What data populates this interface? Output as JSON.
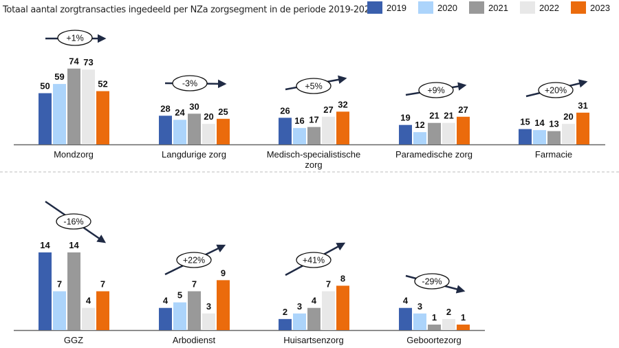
{
  "chart_data": [
    {
      "type": "bar",
      "title": "Totaal aantal zorgtransacties ingedeeld per NZa zorgsegment in de periode 2019-2023",
      "legend_placement": "top-right",
      "categories": [
        "Mondzorg",
        "Langdurige zorg",
        "Medisch-specialistische zorg",
        "Paramedische zorg",
        "Farmacie"
      ],
      "series": [
        {
          "name": "2019",
          "color": "#3a5fad",
          "values": [
            50,
            28,
            26,
            19,
            15
          ]
        },
        {
          "name": "2020",
          "color": "#acd4fb",
          "values": [
            59,
            24,
            16,
            12,
            14
          ]
        },
        {
          "name": "2021",
          "color": "#999999",
          "values": [
            74,
            30,
            17,
            21,
            13
          ]
        },
        {
          "name": "2022",
          "color": "#e8e8e8",
          "values": [
            73,
            20,
            27,
            21,
            20
          ]
        },
        {
          "name": "2023",
          "color": "#eb6b0c",
          "values": [
            52,
            25,
            32,
            27,
            31
          ]
        }
      ],
      "annotations": [
        "+1%",
        "-3%",
        "+5%",
        "+9%",
        "+20%"
      ],
      "grid": false
    },
    {
      "type": "bar",
      "categories": [
        "GGZ",
        "Arbodienst",
        "Huisartsenzorg",
        "Geboortezorg"
      ],
      "series": [
        {
          "name": "2019",
          "color": "#3a5fad",
          "values": [
            14,
            4,
            2,
            4
          ]
        },
        {
          "name": "2020",
          "color": "#acd4fb",
          "values": [
            7,
            5,
            3,
            3
          ]
        },
        {
          "name": "2021",
          "color": "#999999",
          "values": [
            14,
            7,
            4,
            1
          ]
        },
        {
          "name": "2022",
          "color": "#e8e8e8",
          "values": [
            4,
            3,
            7,
            2
          ]
        },
        {
          "name": "2023",
          "color": "#eb6b0c",
          "values": [
            7,
            9,
            8,
            1
          ]
        }
      ],
      "annotations": [
        "-16%",
        "+22%",
        "+41%",
        "-29%"
      ],
      "grid": false
    }
  ]
}
